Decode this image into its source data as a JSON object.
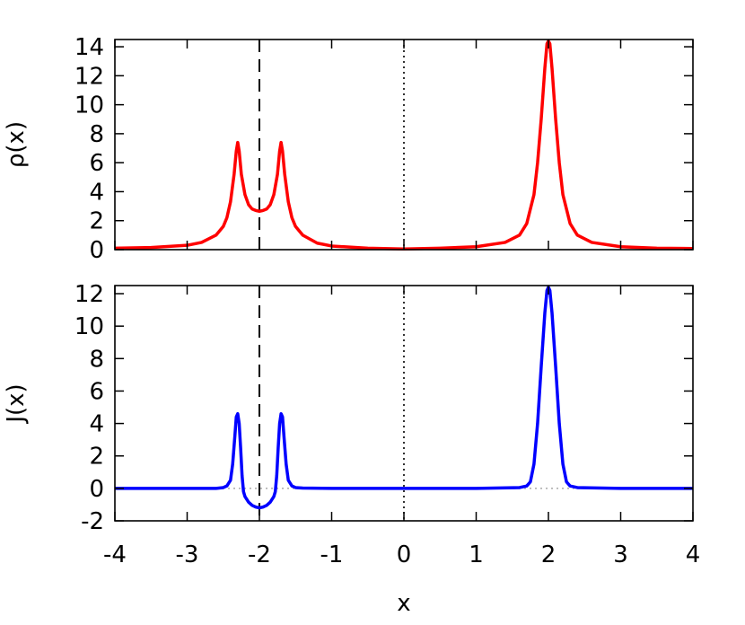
{
  "chart_data": [
    {
      "type": "line",
      "ylabel": "ρ(x)",
      "xlim": [
        -4,
        4
      ],
      "ylim": [
        0,
        14.5
      ],
      "yticks": [
        0,
        2,
        4,
        6,
        8,
        10,
        12,
        14
      ],
      "ytick_labels": [
        "0",
        "2",
        "4",
        "6",
        "8",
        "10",
        "12",
        "14"
      ],
      "xticks": [
        -4,
        -3,
        -2,
        -1,
        0,
        1,
        2,
        3,
        4
      ],
      "grid": false,
      "reference_lines": [
        {
          "x": -2,
          "style": "dashed",
          "color": "#000000"
        },
        {
          "x": 0,
          "style": "dotted",
          "color": "#000000"
        }
      ],
      "series": [
        {
          "color": "#ff0000",
          "x": [
            -4.0,
            -3.5,
            -3.0,
            -2.8,
            -2.6,
            -2.5,
            -2.45,
            -2.4,
            -2.35,
            -2.32,
            -2.3,
            -2.28,
            -2.25,
            -2.2,
            -2.15,
            -2.1,
            -2.05,
            -2.0,
            -1.95,
            -1.9,
            -1.85,
            -1.8,
            -1.75,
            -1.72,
            -1.7,
            -1.68,
            -1.65,
            -1.6,
            -1.55,
            -1.5,
            -1.4,
            -1.2,
            -1.0,
            -0.5,
            0.0,
            0.5,
            1.0,
            1.4,
            1.6,
            1.7,
            1.8,
            1.85,
            1.9,
            1.95,
            1.98,
            2.0,
            2.02,
            2.05,
            2.1,
            2.15,
            2.2,
            2.3,
            2.4,
            2.6,
            3.0,
            3.5,
            4.0
          ],
          "y": [
            0.1,
            0.15,
            0.3,
            0.5,
            1.0,
            1.6,
            2.2,
            3.3,
            5.2,
            6.8,
            7.4,
            6.8,
            5.2,
            3.8,
            3.1,
            2.8,
            2.7,
            2.65,
            2.7,
            2.8,
            3.1,
            3.8,
            5.2,
            6.8,
            7.4,
            6.8,
            5.2,
            3.3,
            2.2,
            1.6,
            1.0,
            0.45,
            0.25,
            0.1,
            0.05,
            0.1,
            0.2,
            0.5,
            1.0,
            1.8,
            3.8,
            6.0,
            9.0,
            12.5,
            14.2,
            14.4,
            14.2,
            12.5,
            9.0,
            6.0,
            3.8,
            1.8,
            1.0,
            0.5,
            0.2,
            0.1,
            0.08
          ]
        }
      ]
    },
    {
      "type": "line",
      "xlabel": "x",
      "ylabel": "J(x)",
      "xlim": [
        -4,
        4
      ],
      "ylim": [
        -2,
        12.5
      ],
      "yticks": [
        -2,
        0,
        2,
        4,
        6,
        8,
        10,
        12
      ],
      "ytick_labels": [
        "-2",
        "0",
        "2",
        "4",
        "6",
        "8",
        "10",
        "12"
      ],
      "xticks": [
        -4,
        -3,
        -2,
        -1,
        0,
        1,
        2,
        3,
        4
      ],
      "xtick_labels": [
        "-4",
        "-3",
        "-2",
        "-1",
        "0",
        "1",
        "2",
        "3",
        "4"
      ],
      "grid": false,
      "reference_lines": [
        {
          "x": -2,
          "style": "dashed",
          "color": "#000000"
        },
        {
          "x": 0,
          "style": "dotted",
          "color": "#000000"
        },
        {
          "y": 0,
          "style": "dotted",
          "color": "#b0b0b0"
        }
      ],
      "series": [
        {
          "color": "#0000ff",
          "x": [
            -4.0,
            -3.0,
            -2.6,
            -2.5,
            -2.45,
            -2.4,
            -2.37,
            -2.34,
            -2.32,
            -2.3,
            -2.28,
            -2.26,
            -2.24,
            -2.22,
            -2.2,
            -2.15,
            -2.1,
            -2.05,
            -2.0,
            -1.95,
            -1.9,
            -1.85,
            -1.8,
            -1.78,
            -1.76,
            -1.74,
            -1.72,
            -1.7,
            -1.68,
            -1.66,
            -1.63,
            -1.6,
            -1.55,
            -1.5,
            -1.4,
            -1.0,
            0.0,
            1.0,
            1.6,
            1.7,
            1.75,
            1.8,
            1.85,
            1.9,
            1.95,
            1.98,
            2.0,
            2.02,
            2.05,
            2.1,
            2.15,
            2.2,
            2.25,
            2.3,
            2.4,
            3.0,
            4.0
          ],
          "y": [
            0.0,
            0.0,
            0.0,
            0.05,
            0.15,
            0.5,
            1.5,
            3.2,
            4.4,
            4.6,
            4.0,
            2.5,
            0.8,
            -0.2,
            -0.5,
            -0.85,
            -1.05,
            -1.15,
            -1.2,
            -1.15,
            -1.05,
            -0.85,
            -0.5,
            -0.2,
            0.8,
            2.5,
            4.0,
            4.6,
            4.4,
            3.2,
            1.5,
            0.5,
            0.15,
            0.05,
            0.02,
            0.0,
            0.0,
            0.0,
            0.05,
            0.15,
            0.4,
            1.5,
            4.0,
            7.5,
            10.8,
            12.2,
            12.4,
            12.2,
            10.8,
            7.5,
            4.0,
            1.5,
            0.4,
            0.15,
            0.05,
            0.0,
            0.0
          ]
        }
      ]
    }
  ]
}
